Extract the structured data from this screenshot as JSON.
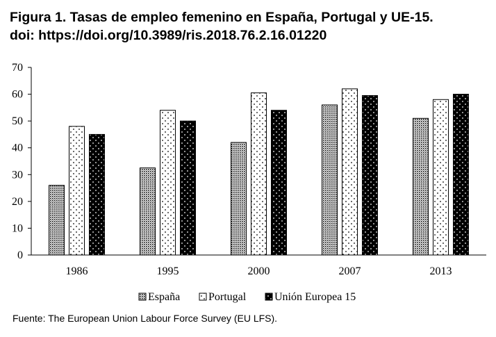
{
  "title_line1": "Figura 1. Tasas de empleo femenino en España, Portugal y UE-15.",
  "title_line2": "doi: https://doi.org/10.3989/ris.2018.76.2.16.01220",
  "source": "Fuente: The European Union Labour Force Survey (EU LFS).",
  "chart_data": {
    "type": "bar",
    "categories": [
      "1986",
      "1995",
      "2000",
      "2007",
      "2013"
    ],
    "series": [
      {
        "name": "España",
        "values": [
          26,
          32.5,
          42,
          56,
          51
        ],
        "pattern": "dense-dots"
      },
      {
        "name": "Portugal",
        "values": [
          48,
          54,
          60.5,
          62,
          58
        ],
        "pattern": "sparse-dots"
      },
      {
        "name": "Unión Europea 15",
        "values": [
          45,
          50,
          54,
          59.5,
          60
        ],
        "pattern": "black-dots"
      }
    ],
    "ylim": [
      0,
      70
    ],
    "yticks": [
      "0",
      "10",
      "20",
      "30",
      "40",
      "50",
      "60",
      "70"
    ],
    "grid": false,
    "legend_position": "bottom"
  }
}
